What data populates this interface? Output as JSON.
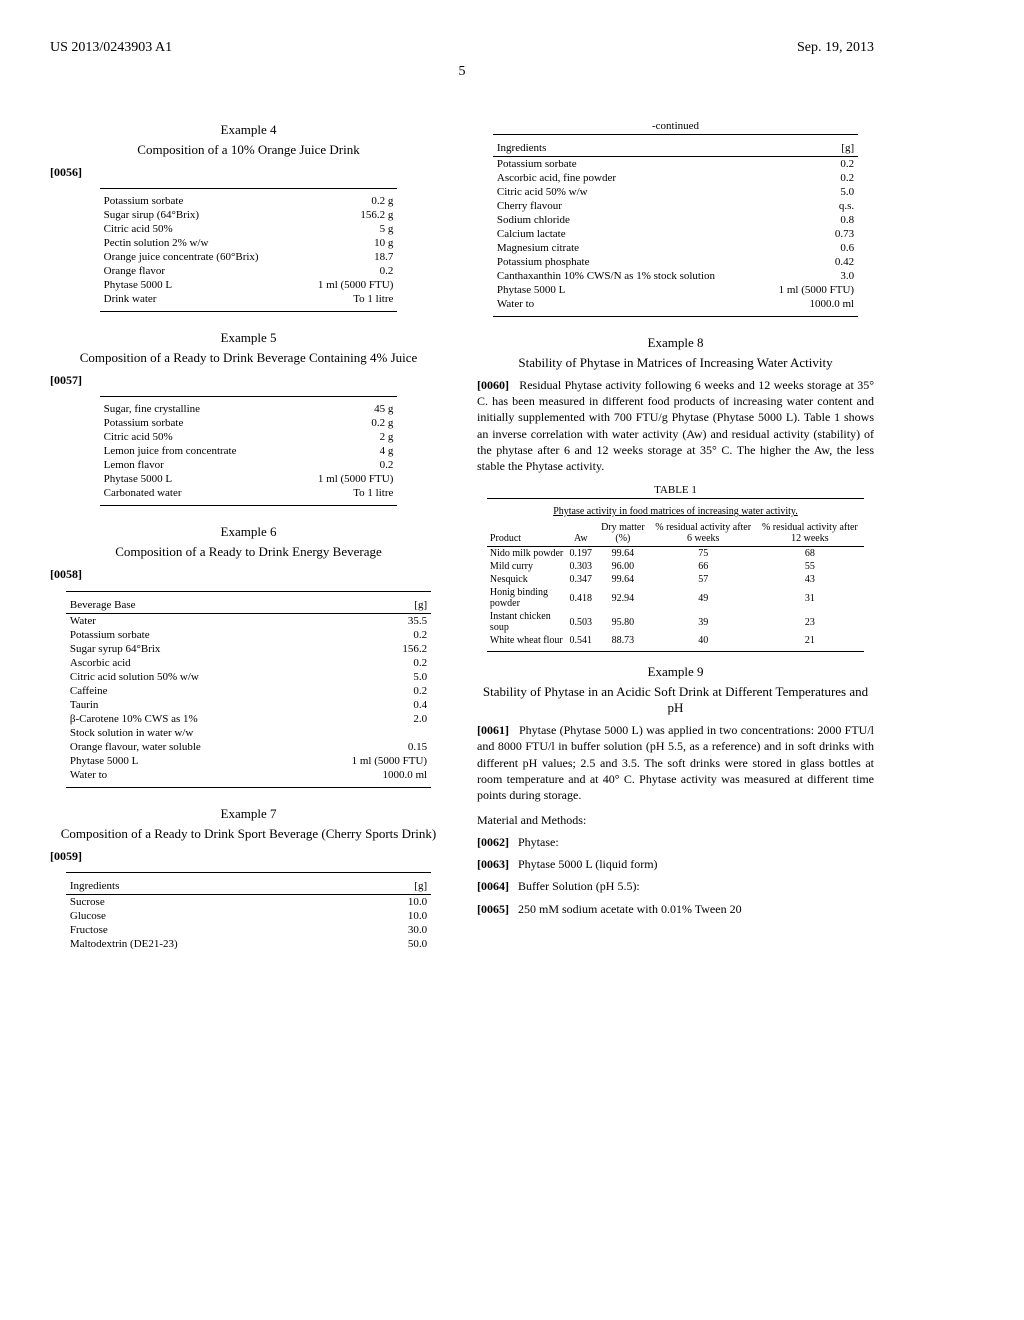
{
  "header": {
    "left": "US 2013/0243903 A1",
    "right": "Sep. 19, 2013",
    "pageNum": "5"
  },
  "ex4": {
    "title": "Example 4",
    "sub": "Composition of a 10% Orange Juice Drink",
    "para": "[0056]",
    "rows": [
      [
        "Potassium sorbate",
        "0.2 g"
      ],
      [
        "Sugar sirup (64°Brix)",
        "156.2 g"
      ],
      [
        "Citric acid 50%",
        "5 g"
      ],
      [
        "Pectin solution 2% w/w",
        "10 g"
      ],
      [
        "Orange juice concentrate (60°Brix)",
        "18.7"
      ],
      [
        "Orange flavor",
        "0.2"
      ],
      [
        "Phytase 5000 L",
        "1 ml (5000 FTU)"
      ],
      [
        "Drink water",
        "To 1 litre"
      ]
    ]
  },
  "ex5": {
    "title": "Example 5",
    "sub": "Composition of a Ready to Drink Beverage Containing 4% Juice",
    "para": "[0057]",
    "rows": [
      [
        "Sugar, fine crystalline",
        "45 g"
      ],
      [
        "Potassium sorbate",
        "0.2 g"
      ],
      [
        "Citric acid 50%",
        "2 g"
      ],
      [
        "Lemon juice from concentrate",
        "4 g"
      ],
      [
        "Lemon flavor",
        "0.2"
      ],
      [
        "Phytase 5000 L",
        "1 ml (5000 FTU)"
      ],
      [
        "Carbonated water",
        "To 1 litre"
      ]
    ]
  },
  "ex6": {
    "title": "Example 6",
    "sub": "Composition of a Ready to Drink Energy Beverage",
    "para": "[0058]",
    "head": [
      "Beverage Base",
      "[g]"
    ],
    "rows": [
      [
        "Water",
        "35.5"
      ],
      [
        "Potassium sorbate",
        "0.2"
      ],
      [
        "Sugar syrup 64°Brix",
        "156.2"
      ],
      [
        "Ascorbic acid",
        "0.2"
      ],
      [
        "Citric acid solution 50% w/w",
        "5.0"
      ],
      [
        "Caffeine",
        "0.2"
      ],
      [
        "Taurin",
        "0.4"
      ],
      [
        "β-Carotene 10% CWS as 1%",
        "2.0"
      ],
      [
        "Stock solution in water w/w",
        ""
      ],
      [
        "Orange flavour, water soluble",
        "0.15"
      ],
      [
        "Phytase 5000 L",
        "1 ml (5000 FTU)"
      ],
      [
        "Water to",
        "1000.0 ml"
      ]
    ]
  },
  "ex7": {
    "title": "Example 7",
    "sub": "Composition of a Ready to Drink Sport Beverage (Cherry Sports Drink)",
    "para": "[0059]",
    "head": [
      "Ingredients",
      "[g]"
    ],
    "rows": [
      [
        "Sucrose",
        "10.0"
      ],
      [
        "Glucose",
        "10.0"
      ],
      [
        "Fructose",
        "30.0"
      ],
      [
        "Maltodextrin (DE21-23)",
        "50.0"
      ]
    ]
  },
  "ex7cont": {
    "title": "-continued",
    "head": [
      "Ingredients",
      "[g]"
    ],
    "rows": [
      [
        "Potassium sorbate",
        "0.2"
      ],
      [
        "Ascorbic acid, fine powder",
        "0.2"
      ],
      [
        "Citric acid 50% w/w",
        "5.0"
      ],
      [
        "Cherry flavour",
        "q.s."
      ],
      [
        "Sodium chloride",
        "0.8"
      ],
      [
        "Calcium lactate",
        "0.73"
      ],
      [
        "Magnesium citrate",
        "0.6"
      ],
      [
        "Potassium phosphate",
        "0.42"
      ],
      [
        "Canthaxanthin 10% CWS/N as 1% stock solution",
        "3.0"
      ],
      [
        "Phytase 5000 L",
        "1 ml (5000 FTU)"
      ],
      [
        "Water to",
        "1000.0 ml"
      ]
    ]
  },
  "ex8": {
    "title": "Example 8",
    "sub": "Stability of Phytase in Matrices of Increasing Water Activity",
    "para_num": "[0060]",
    "para": "Residual Phytase activity following 6 weeks and 12 weeks storage at 35° C. has been measured in different food products of increasing water content and initially supplemented with 700 FTU/g Phytase (Phytase 5000 L). Table 1 shows an inverse correlation with water activity (Aw) and residual activity (stability) of the phytase after 6 and 12 weeks storage at 35° C. The higher the Aw, the less stable the Phytase activity."
  },
  "table1": {
    "caption": "TABLE 1",
    "subcaption": "Phytase activity in food matrices of increasing water activity.",
    "head": [
      "Product",
      "Aw",
      "Dry matter (%)",
      "% residual activity after 6 weeks",
      "% residual activity after 12 weeks"
    ],
    "rows": [
      [
        "Nido milk powder",
        "0.197",
        "99.64",
        "75",
        "68"
      ],
      [
        "Mild curry",
        "0.303",
        "96.00",
        "66",
        "55"
      ],
      [
        "Nesquick",
        "0.347",
        "99.64",
        "57",
        "43"
      ],
      [
        "Honig binding powder",
        "0.418",
        "92.94",
        "49",
        "31"
      ],
      [
        "Instant chicken soup",
        "0.503",
        "95.80",
        "39",
        "23"
      ],
      [
        "White wheat flour",
        "0.541",
        "88.73",
        "40",
        "21"
      ]
    ]
  },
  "ex9": {
    "title": "Example 9",
    "sub": "Stability of Phytase in an Acidic Soft Drink at Different Temperatures and pH",
    "para_num": "[0061]",
    "para": "Phytase (Phytase 5000 L) was applied in two concentrations: 2000 FTU/l and 8000 FTU/l in buffer solution (pH 5.5, as a reference) and in soft drinks with different pH values; 2.5 and 3.5. The soft drinks were stored in glass bottles at room temperature and at 40° C. Phytase activity was measured at different time points during storage.",
    "mm": "Material and Methods:",
    "items": [
      {
        "num": "[0062]",
        "text": "Phytase:"
      },
      {
        "num": "[0063]",
        "text": "Phytase 5000 L (liquid form)"
      },
      {
        "num": "[0064]",
        "text": "Buffer Solution (pH 5.5):"
      },
      {
        "num": "[0065]",
        "text": "250 mM sodium acetate with 0.01% Tween 20"
      }
    ]
  }
}
